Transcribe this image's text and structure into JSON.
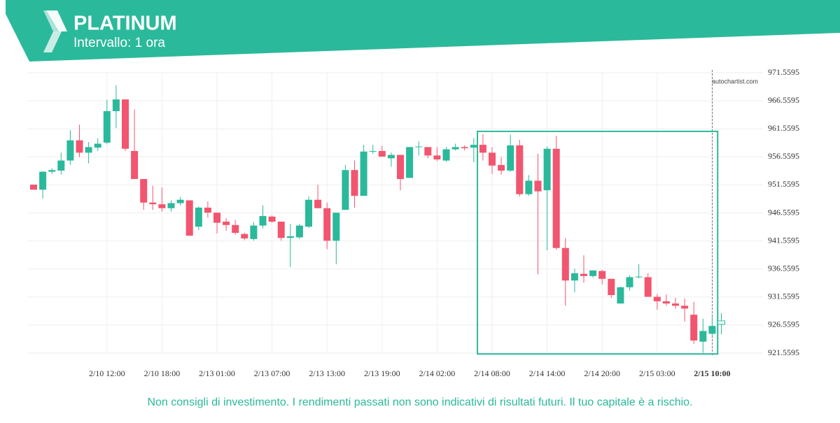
{
  "header": {
    "title": "PLATINUM",
    "subtitle": "Intervallo: 1 ora"
  },
  "footer": "Non consigli di investimento. I rendimenti passati non sono indicativi di risultati futuri. Il tuo capitale è a rischio.",
  "chart_data": {
    "type": "candlestick",
    "watermark": "autochartist.com",
    "categories": [
      null,
      null,
      null,
      null,
      null,
      null,
      null,
      null,
      "2/10 12:00",
      null,
      null,
      null,
      null,
      null,
      "2/10 18:00",
      null,
      null,
      null,
      null,
      null,
      "2/13 01:00",
      null,
      null,
      null,
      null,
      null,
      "2/13 07:00",
      null,
      null,
      null,
      null,
      null,
      "2/13 13:00",
      null,
      null,
      null,
      null,
      null,
      "2/13 19:00",
      null,
      null,
      null,
      null,
      null,
      "2/14 02:00",
      null,
      null,
      null,
      null,
      null,
      "2/14 08:00",
      null,
      null,
      null,
      null,
      null,
      "2/14 14:00",
      null,
      null,
      null,
      null,
      null,
      "2/14 20:00",
      null,
      null,
      null,
      null,
      null,
      "2/15 03:00",
      null,
      null,
      null,
      null,
      null,
      "2/15 10:00",
      null
    ],
    "open": [
      951.6,
      950.7,
      953.9,
      954.1,
      955.9,
      959.5,
      957.3,
      958.2,
      959.1,
      964.7,
      966.8,
      957.6,
      952.6,
      948.4,
      948.1,
      947.4,
      948.3,
      948.8,
      944.1,
      947.5,
      946.6,
      945.0,
      944.4,
      942.8,
      941.9,
      944.3,
      945.9,
      945.0,
      942.1,
      942.2,
      944.1,
      948.9,
      947.4,
      941.6,
      947.1,
      954.2,
      949.6,
      957.5,
      957.6,
      956.3,
      956.9,
      952.8,
      958.3,
      958.3,
      956.8,
      955.9,
      957.9,
      958.3,
      958.2,
      958.7,
      957.3,
      955.1,
      954.1,
      958.6,
      949.9,
      952.3,
      950.6,
      958.0,
      940.3,
      934.5,
      935.7,
      935.3,
      936.2,
      934.8,
      930.4,
      933.3,
      935.1,
      935.1,
      931.6,
      930.8,
      930.4,
      930.0,
      928.4,
      923.6,
      925.0,
      926.7
    ],
    "high": [
      951.6,
      954.0,
      954.5,
      957.3,
      961.3,
      962.3,
      959.2,
      959.9,
      966.7,
      969.3,
      966.8,
      965.0,
      952.6,
      951.4,
      951.1,
      948.8,
      949.4,
      948.8,
      947.7,
      948.6,
      946.6,
      945.6,
      945.3,
      943.0,
      944.9,
      947.9,
      946.1,
      945.0,
      944.6,
      944.6,
      949.5,
      951.6,
      948.4,
      946.6,
      955.1,
      955.9,
      958.7,
      958.7,
      958.5,
      957.3,
      956.9,
      958.3,
      959.3,
      958.3,
      958.3,
      958.3,
      958.9,
      958.6,
      959.9,
      960.6,
      958.3,
      956.5,
      960.5,
      959.6,
      953.3,
      957.1,
      958.4,
      960.3,
      942.1,
      936.6,
      939.0,
      936.3,
      936.4,
      934.8,
      933.4,
      935.4,
      937.4,
      935.8,
      932.1,
      932.0,
      931.4,
      931.3,
      930.7,
      927.7,
      928.0,
      928.7
    ],
    "low": [
      950.7,
      949.1,
      953.5,
      953.4,
      955.1,
      956.5,
      955.4,
      957.6,
      958.8,
      961.7,
      957.6,
      952.6,
      947.1,
      947.1,
      946.8,
      946.8,
      947.9,
      942.5,
      943.5,
      945.7,
      942.9,
      943.4,
      942.7,
      941.7,
      941.6,
      943.8,
      944.8,
      941.6,
      936.9,
      941.9,
      943.9,
      947.4,
      940.1,
      937.4,
      947.1,
      947.5,
      949.6,
      957.1,
      956.6,
      954.8,
      950.6,
      952.8,
      956.8,
      956.3,
      955.8,
      955.7,
      957.7,
      957.7,
      955.6,
      955.9,
      953.5,
      953.4,
      953.9,
      949.5,
      949.6,
      935.6,
      939.9,
      940.0,
      930.0,
      932.4,
      934.1,
      935.0,
      933.8,
      931.4,
      930.4,
      932.7,
      934.9,
      931.6,
      929.3,
      930.0,
      929.5,
      927.2,
      923.2,
      921.6,
      924.7,
      924.9
    ],
    "close": [
      950.7,
      953.9,
      954.2,
      955.9,
      959.5,
      957.3,
      958.3,
      958.9,
      964.7,
      966.8,
      958.0,
      952.6,
      948.4,
      948.1,
      947.4,
      948.3,
      948.9,
      942.5,
      947.5,
      946.6,
      944.8,
      944.4,
      943.0,
      942.0,
      944.3,
      946.0,
      945.0,
      942.1,
      942.4,
      944.3,
      948.9,
      947.4,
      941.6,
      946.6,
      954.2,
      949.6,
      957.5,
      957.6,
      956.6,
      956.9,
      952.6,
      958.3,
      958.4,
      956.8,
      956.1,
      957.9,
      958.3,
      958.1,
      958.7,
      957.3,
      955.0,
      954.1,
      958.6,
      949.9,
      952.3,
      950.4,
      958.0,
      940.3,
      934.5,
      935.8,
      935.3,
      936.3,
      934.8,
      931.9,
      933.3,
      935.1,
      935.2,
      931.6,
      930.8,
      930.4,
      930.0,
      929.5,
      923.8,
      925.5,
      926.4,
      927.3
    ],
    "up_color": "#2bb99b",
    "down_color": "#f2556f",
    "last_fill": "#ffffff",
    "ylim": [
      921.5595,
      971.5595
    ],
    "yticks": [
      971.5595,
      966.5595,
      961.5595,
      956.5595,
      951.5595,
      946.5595,
      941.5595,
      936.5595,
      931.5595,
      926.5595,
      921.5595
    ],
    "grid": true,
    "marker_index": 74,
    "pattern": {
      "start": 48.4,
      "end": 74.6,
      "top": 961.1,
      "bottom": 921.4,
      "color": "#2bb99b"
    }
  }
}
